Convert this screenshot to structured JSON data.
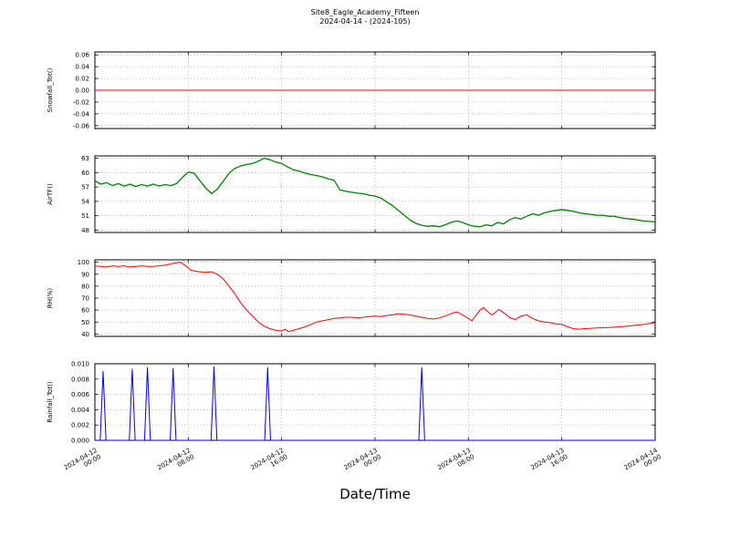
{
  "chart_data": {
    "type": "line",
    "title": "Site8_Eagle_Academy_Fifteen",
    "subtitle": "2024-04-14 - (2024-105)",
    "xlabel": "Date/Time",
    "x_unit": "hours since 2024-04-12 00:00",
    "xlim": [
      0,
      48
    ],
    "grid": true,
    "legend": "none",
    "x_ticks": [
      {
        "hour": 0,
        "date": "2024-04-12",
        "time": "00:00"
      },
      {
        "hour": 8,
        "date": "2024-04-12",
        "time": "08:00"
      },
      {
        "hour": 16,
        "date": "2024-04-12",
        "time": "16:00"
      },
      {
        "hour": 24,
        "date": "2024-04-13",
        "time": "00:00"
      },
      {
        "hour": 32,
        "date": "2024-04-13",
        "time": "08:00"
      },
      {
        "hour": 40,
        "date": "2024-04-13",
        "time": "16:00"
      },
      {
        "hour": 48,
        "date": "2024-04-14",
        "time": "00:00"
      }
    ],
    "subplots": [
      {
        "id": "snowfall",
        "ylabel": "Snowfall_Tot()",
        "color": "#ff0000",
        "ylim": [
          -0.065,
          0.065
        ],
        "yticks": [
          {
            "v": 0.06,
            "label": "0.06"
          },
          {
            "v": 0.04,
            "label": "0.04"
          },
          {
            "v": 0.02,
            "label": "0.02"
          },
          {
            "v": 0.0,
            "label": "0.00"
          },
          {
            "v": -0.02,
            "label": "-0.02"
          },
          {
            "v": -0.04,
            "label": "-0.04"
          },
          {
            "v": -0.06,
            "label": "-0.06"
          }
        ],
        "points": [
          [
            0,
            0
          ],
          [
            48,
            0
          ]
        ]
      },
      {
        "id": "airtf",
        "ylabel": "AirTF()",
        "color": "#008000",
        "ylim": [
          47.5,
          63.5
        ],
        "yticks": [
          {
            "v": 63,
            "label": "63"
          },
          {
            "v": 60,
            "label": "60"
          },
          {
            "v": 57,
            "label": "57"
          },
          {
            "v": 54,
            "label": "54"
          },
          {
            "v": 51,
            "label": "51"
          },
          {
            "v": 48,
            "label": "48"
          }
        ],
        "points": [
          [
            0,
            58.3
          ],
          [
            0.5,
            57.6
          ],
          [
            1,
            57.9
          ],
          [
            1.5,
            57.3
          ],
          [
            2,
            57.7
          ],
          [
            2.5,
            57.2
          ],
          [
            3,
            57.6
          ],
          [
            3.5,
            57.1
          ],
          [
            4,
            57.5
          ],
          [
            4.5,
            57.2
          ],
          [
            5,
            57.6
          ],
          [
            5.5,
            57.2
          ],
          [
            6,
            57.5
          ],
          [
            6.5,
            57.3
          ],
          [
            7,
            57.7
          ],
          [
            7.5,
            59.0
          ],
          [
            8,
            60.1
          ],
          [
            8.5,
            59.9
          ],
          [
            9,
            58.3
          ],
          [
            9.5,
            56.8
          ],
          [
            10,
            55.6
          ],
          [
            10.5,
            56.6
          ],
          [
            11,
            58.2
          ],
          [
            11.5,
            59.9
          ],
          [
            12,
            60.9
          ],
          [
            12.5,
            61.4
          ],
          [
            13,
            61.7
          ],
          [
            13.5,
            61.9
          ],
          [
            14,
            62.4
          ],
          [
            14.5,
            63.0
          ],
          [
            15,
            62.7
          ],
          [
            15.5,
            62.2
          ],
          [
            16,
            61.9
          ],
          [
            16.5,
            61.2
          ],
          [
            17,
            60.6
          ],
          [
            17.5,
            60.3
          ],
          [
            18,
            59.9
          ],
          [
            18.5,
            59.6
          ],
          [
            19,
            59.4
          ],
          [
            19.5,
            59.1
          ],
          [
            20,
            58.7
          ],
          [
            20.5,
            58.4
          ],
          [
            21,
            56.4
          ],
          [
            21.5,
            56.1
          ],
          [
            22,
            55.9
          ],
          [
            22.5,
            55.7
          ],
          [
            23,
            55.6
          ],
          [
            23.5,
            55.3
          ],
          [
            24,
            55.1
          ],
          [
            24.5,
            54.7
          ],
          [
            25,
            53.9
          ],
          [
            25.5,
            53.1
          ],
          [
            26,
            52.1
          ],
          [
            26.5,
            51.1
          ],
          [
            27,
            50.1
          ],
          [
            27.5,
            49.4
          ],
          [
            28,
            49.0
          ],
          [
            28.5,
            48.8
          ],
          [
            29,
            48.9
          ],
          [
            29.5,
            48.7
          ],
          [
            30,
            49.1
          ],
          [
            30.5,
            49.6
          ],
          [
            31,
            49.9
          ],
          [
            31.5,
            49.6
          ],
          [
            32,
            49.1
          ],
          [
            32.5,
            48.8
          ],
          [
            33,
            48.7
          ],
          [
            33.5,
            49.1
          ],
          [
            34,
            48.9
          ],
          [
            34.5,
            49.6
          ],
          [
            35,
            49.3
          ],
          [
            35.5,
            50.1
          ],
          [
            36,
            50.6
          ],
          [
            36.5,
            50.3
          ],
          [
            37,
            50.9
          ],
          [
            37.5,
            51.4
          ],
          [
            38,
            51.1
          ],
          [
            38.5,
            51.6
          ],
          [
            39,
            51.9
          ],
          [
            39.5,
            52.1
          ],
          [
            40,
            52.3
          ],
          [
            40.5,
            52.1
          ],
          [
            41,
            51.9
          ],
          [
            41.5,
            51.6
          ],
          [
            42,
            51.4
          ],
          [
            42.5,
            51.3
          ],
          [
            43,
            51.1
          ],
          [
            43.5,
            51.1
          ],
          [
            44,
            50.9
          ],
          [
            44.5,
            50.9
          ],
          [
            45,
            50.6
          ],
          [
            45.5,
            50.4
          ],
          [
            46,
            50.3
          ],
          [
            46.5,
            50.1
          ],
          [
            47,
            49.9
          ],
          [
            47.5,
            49.8
          ],
          [
            48,
            49.7
          ]
        ]
      },
      {
        "id": "rh",
        "ylabel": "RH(%)",
        "color": "#ff0000",
        "ylim": [
          38,
          102
        ],
        "yticks": [
          {
            "v": 100,
            "label": "100"
          },
          {
            "v": 90,
            "label": "90"
          },
          {
            "v": 80,
            "label": "80"
          },
          {
            "v": 70,
            "label": "70"
          },
          {
            "v": 60,
            "label": "60"
          },
          {
            "v": 50,
            "label": "50"
          },
          {
            "v": 40,
            "label": "40"
          }
        ],
        "points": [
          [
            0,
            97
          ],
          [
            0.5,
            96.5
          ],
          [
            1,
            96
          ],
          [
            1.5,
            97
          ],
          [
            2,
            96.5
          ],
          [
            2.5,
            97
          ],
          [
            3,
            96
          ],
          [
            3.5,
            96.5
          ],
          [
            4,
            97
          ],
          [
            4.5,
            96.5
          ],
          [
            5,
            96.5
          ],
          [
            5.5,
            97
          ],
          [
            6,
            97.5
          ],
          [
            6.5,
            98.5
          ],
          [
            7,
            99.5
          ],
          [
            7.3,
            100
          ],
          [
            7.8,
            97
          ],
          [
            8.2,
            93.5
          ],
          [
            8.6,
            92.5
          ],
          [
            9,
            92
          ],
          [
            9.5,
            91.5
          ],
          [
            10,
            92
          ],
          [
            10.5,
            90
          ],
          [
            11,
            86
          ],
          [
            11.5,
            80
          ],
          [
            12,
            73.5
          ],
          [
            12.5,
            66
          ],
          [
            13,
            60
          ],
          [
            13.5,
            55
          ],
          [
            14,
            50
          ],
          [
            14.5,
            46.5
          ],
          [
            15,
            44.5
          ],
          [
            15.5,
            43
          ],
          [
            16,
            42.5
          ],
          [
            16.3,
            44
          ],
          [
            16.6,
            42
          ],
          [
            17,
            43
          ],
          [
            17.5,
            44.5
          ],
          [
            18,
            46
          ],
          [
            18.5,
            48
          ],
          [
            19,
            50
          ],
          [
            19.5,
            51
          ],
          [
            20,
            52
          ],
          [
            20.5,
            53
          ],
          [
            21,
            53.5
          ],
          [
            21.5,
            54
          ],
          [
            22,
            54
          ],
          [
            22.5,
            53.5
          ],
          [
            23,
            54
          ],
          [
            23.5,
            54.5
          ],
          [
            24,
            55
          ],
          [
            24.5,
            54.5
          ],
          [
            25,
            55.5
          ],
          [
            25.5,
            56
          ],
          [
            26,
            57
          ],
          [
            26.5,
            56.5
          ],
          [
            27,
            56
          ],
          [
            27.5,
            55
          ],
          [
            28,
            54
          ],
          [
            28.5,
            53
          ],
          [
            29,
            52.5
          ],
          [
            29.5,
            53.5
          ],
          [
            30,
            55
          ],
          [
            30.5,
            57
          ],
          [
            31,
            58.5
          ],
          [
            31.5,
            56
          ],
          [
            32,
            53
          ],
          [
            32.3,
            51
          ],
          [
            32.6,
            55
          ],
          [
            33,
            60
          ],
          [
            33.3,
            62
          ],
          [
            33.6,
            59
          ],
          [
            34,
            56
          ],
          [
            34.3,
            58
          ],
          [
            34.6,
            60.5
          ],
          [
            35,
            58
          ],
          [
            35.5,
            54
          ],
          [
            36,
            52
          ],
          [
            36.5,
            55
          ],
          [
            37,
            56
          ],
          [
            37.5,
            53
          ],
          [
            38,
            51
          ],
          [
            38.5,
            50
          ],
          [
            39,
            49.5
          ],
          [
            39.5,
            48.5
          ],
          [
            40,
            48
          ],
          [
            40.5,
            46
          ],
          [
            41,
            44.5
          ],
          [
            41.5,
            44
          ],
          [
            42,
            44.5
          ],
          [
            43,
            45
          ],
          [
            44,
            45.5
          ],
          [
            45,
            46
          ],
          [
            46,
            47
          ],
          [
            47,
            48
          ],
          [
            48,
            49.5
          ]
        ]
      },
      {
        "id": "rainfall",
        "ylabel": "Rainfall_Tot()",
        "color": "#0000ff",
        "ylim": [
          0,
          0.01
        ],
        "yticks": [
          {
            "v": 0.01,
            "label": "0.010"
          },
          {
            "v": 0.008,
            "label": "0.008"
          },
          {
            "v": 0.006,
            "label": "0.006"
          },
          {
            "v": 0.004,
            "label": "0.004"
          },
          {
            "v": 0.002,
            "label": "0.002"
          },
          {
            "v": 0.0,
            "label": "0.000"
          }
        ],
        "points": [
          [
            0,
            0
          ],
          [
            0.45,
            0
          ],
          [
            0.7,
            0.009
          ],
          [
            0.95,
            0
          ],
          [
            2.95,
            0
          ],
          [
            3.2,
            0.0093
          ],
          [
            3.45,
            0
          ],
          [
            4.25,
            0
          ],
          [
            4.5,
            0.0095
          ],
          [
            4.75,
            0
          ],
          [
            6.45,
            0
          ],
          [
            6.7,
            0.0094
          ],
          [
            6.95,
            0
          ],
          [
            9.95,
            0
          ],
          [
            10.2,
            0.0096
          ],
          [
            10.45,
            0
          ],
          [
            14.55,
            0
          ],
          [
            14.8,
            0.0095
          ],
          [
            15.05,
            0
          ],
          [
            27.75,
            0
          ],
          [
            28.0,
            0.0095
          ],
          [
            28.25,
            0
          ],
          [
            48,
            0
          ]
        ]
      }
    ]
  }
}
